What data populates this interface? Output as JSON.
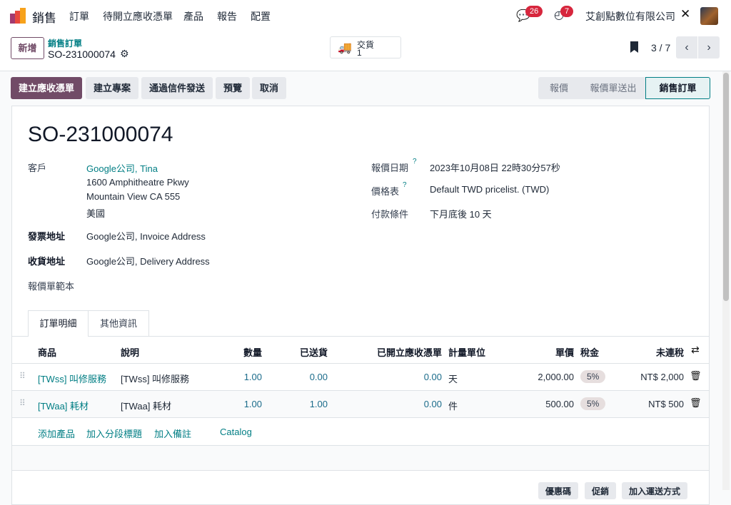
{
  "nav": {
    "app": "銷售",
    "menu": [
      "訂單",
      "待開立應收憑單",
      "產品",
      "報告",
      "配置"
    ],
    "messages_count": "26",
    "activities_count": "7",
    "company": "艾創點數位有限公司"
  },
  "control": {
    "new_label": "新增",
    "breadcrumb": "銷售訂單",
    "record": "SO-231000074",
    "smart_button": {
      "label": "交貨",
      "count": "1"
    },
    "pager": "3 / 7"
  },
  "actions": [
    "建立應收憑單",
    "建立專案",
    "通過信件發送",
    "預覽",
    "取消"
  ],
  "stages": [
    "報價",
    "報價單送出",
    "銷售訂單"
  ],
  "active_stage": "銷售訂單",
  "form": {
    "title": "SO-231000074",
    "customer_label": "客戶",
    "customer": "Google公司, Tina",
    "address": [
      "1600 Amphitheatre Pkwy",
      "Mountain View CA 555",
      "美國"
    ],
    "invoice_label": "發票地址",
    "invoice": "Google公司, Invoice Address",
    "delivery_label": "收貨地址",
    "delivery": "Google公司, Delivery Address",
    "template_label": "報價單範本",
    "date_label": "報價日期",
    "date": "2023年10月08日 22時30分57秒",
    "pricelist_label": "價格表",
    "pricelist": "Default TWD pricelist. (TWD)",
    "terms_label": "付款條件",
    "terms": "下月底後 10 天"
  },
  "tabs": [
    "訂單明細",
    "其他資訊"
  ],
  "table": {
    "headers": [
      "商品",
      "說明",
      "數量",
      "已送貨",
      "已開立應收憑單",
      "計量單位",
      "單價",
      "稅金",
      "未連稅"
    ],
    "rows": [
      {
        "product": "[TWss] 叫修服務",
        "desc": "[TWss] 叫修服務",
        "qty": "1.00",
        "delivered": "0.00",
        "invoiced": "0.00",
        "uom": "天",
        "price": "2,000.00",
        "tax": "5%",
        "subtotal": "NT$ 2,000"
      },
      {
        "product": "[TWaa] 耗材",
        "desc": "[TWaa] 耗材",
        "qty": "1.00",
        "delivered": "1.00",
        "invoiced": "0.00",
        "uom": "件",
        "price": "500.00",
        "tax": "5%",
        "subtotal": "NT$ 500"
      }
    ],
    "add_links": [
      "添加產品",
      "加入分段標題",
      "加入備註",
      "Catalog"
    ]
  },
  "footer_buttons": [
    "優惠碼",
    "促銷",
    "加入運送方式"
  ],
  "colors": {
    "primary": "#714b67",
    "link": "#017e84",
    "badge": "#d7263d"
  }
}
